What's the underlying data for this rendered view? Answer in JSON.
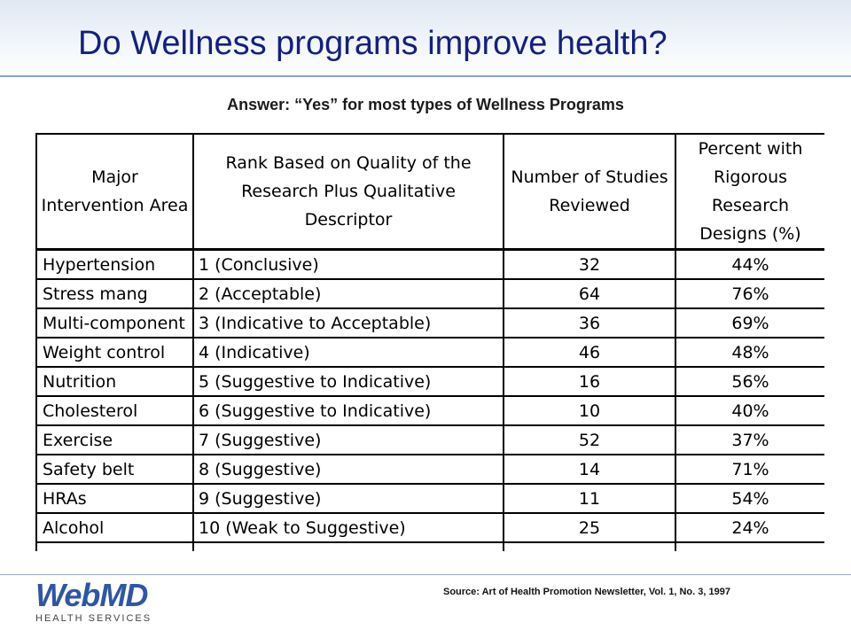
{
  "slide": {
    "title": "Do Wellness programs improve health?",
    "subtitle": "Answer:  “Yes” for most types of Wellness Programs",
    "source": "Source: Art of Health Promotion Newsletter,  Vol. 1, No. 3, 1997"
  },
  "table": {
    "headers": [
      "Major Intervention Area",
      "Rank Based on Quality of the Research Plus Qualitative Descriptor",
      "Number of Studies Reviewed",
      "Percent with Rigorous Research Designs (%)"
    ],
    "rows": [
      [
        "Hypertension",
        "1 (Conclusive)",
        "32",
        "44%"
      ],
      [
        "Stress mang",
        "2 (Acceptable)",
        "64",
        "76%"
      ],
      [
        "Multi-component",
        "3 (Indicative to Acceptable)",
        "36",
        "69%"
      ],
      [
        "Weight control",
        "4 (Indicative)",
        "46",
        "48%"
      ],
      [
        "Nutrition",
        "5 (Suggestive to Indicative)",
        "16",
        "56%"
      ],
      [
        "Cholesterol",
        "6 (Suggestive to Indicative)",
        "10",
        "40%"
      ],
      [
        "Exercise",
        "7 (Suggestive)",
        "52",
        "37%"
      ],
      [
        "Safety belt",
        "8 (Suggestive)",
        "14",
        "71%"
      ],
      [
        "HRAs",
        "9 (Suggestive)",
        "11",
        "54%"
      ],
      [
        "Alcohol",
        "10 (Weak to Suggestive)",
        "25",
        "24%"
      ]
    ]
  },
  "logo": {
    "name": "WebMD",
    "tagline": "HEALTH SERVICES"
  },
  "colors": {
    "title": "#13217e",
    "brand": "#2f56a3"
  }
}
